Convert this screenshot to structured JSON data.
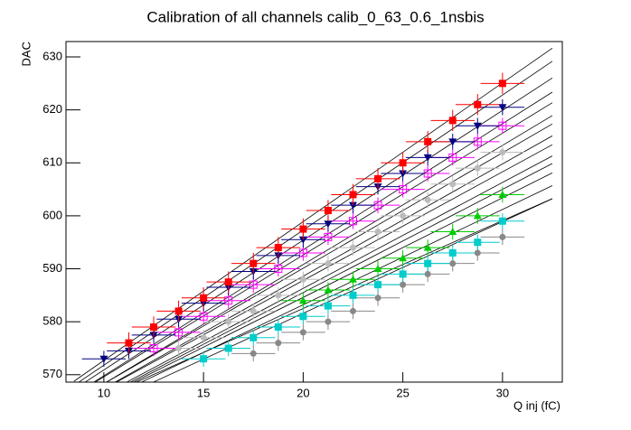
{
  "chart_data": {
    "type": "scatter",
    "title": "Calibration of all channels calib_0_63_0.6_1nsbis",
    "x_label": "Q inj (fC)",
    "y_label": "DAC",
    "xlim": [
      8.1,
      33.0
    ],
    "ylim": [
      568.6,
      632.9
    ],
    "xticks": [
      10,
      15,
      20,
      25,
      30
    ],
    "yticks": [
      570,
      580,
      590,
      600,
      610,
      620,
      630
    ],
    "fit_color": "#000000",
    "fit_range": [
      8.5,
      32.5
    ],
    "fits": [
      {
        "slope": 2.62,
        "intercept": 546.5
      },
      {
        "slope": 2.55,
        "intercept": 546.3
      },
      {
        "slope": 2.45,
        "intercept": 546.4
      },
      {
        "slope": 2.38,
        "intercept": 546.0
      },
      {
        "slope": 2.3,
        "intercept": 546.6
      },
      {
        "slope": 2.25,
        "intercept": 545.8
      },
      {
        "slope": 2.18,
        "intercept": 546.5
      },
      {
        "slope": 2.12,
        "intercept": 546.2
      },
      {
        "slope": 2.05,
        "intercept": 546.8
      },
      {
        "slope": 2.0,
        "intercept": 546.3
      },
      {
        "slope": 1.95,
        "intercept": 546.5
      },
      {
        "slope": 1.88,
        "intercept": 547.0
      },
      {
        "slope": 1.8,
        "intercept": 547.2
      },
      {
        "slope": 1.73,
        "intercept": 547.0
      },
      {
        "slope": 1.66,
        "intercept": 549.3
      }
    ],
    "series": [
      {
        "color": "#bbbbbb",
        "marker": "circle",
        "xerr": 1.1,
        "yerr": 1.5,
        "x": [
          13.75,
          15,
          16.25,
          17.5,
          18.75,
          20,
          21.25,
          22.5,
          23.75,
          25,
          26.25,
          27.5,
          28.75,
          30
        ],
        "values": [
          575,
          577,
          580,
          582,
          585,
          588,
          591,
          594,
          597,
          600,
          603,
          606,
          609,
          612
        ]
      },
      {
        "color": "#888888",
        "marker": "circle",
        "xerr": 1.1,
        "yerr": 1.5,
        "x": [
          17.5,
          18.75,
          20,
          21.25,
          22.5,
          23.75,
          25,
          26.25,
          27.5,
          28.75,
          30
        ],
        "values": [
          574,
          576,
          578,
          580,
          582,
          584.5,
          587,
          589,
          591,
          593,
          596
        ]
      },
      {
        "color": "#00cccc",
        "marker": "square",
        "xerr": 1.1,
        "yerr": 1.5,
        "x": [
          15,
          16.25,
          17.5,
          18.75,
          20,
          21.25,
          22.5,
          23.75,
          25,
          26.25,
          27.5,
          28.75,
          30
        ],
        "values": [
          573,
          575,
          577,
          579,
          581,
          583,
          585,
          587,
          589,
          591,
          593,
          595,
          599
        ]
      },
      {
        "color": "#00cc00",
        "marker": "triangle",
        "xerr": 1.1,
        "yerr": 1.5,
        "x": [
          20,
          21.25,
          22.5,
          23.75,
          25,
          26.25,
          27.5,
          28.75,
          30
        ],
        "values": [
          584,
          586,
          588,
          590,
          592,
          594,
          597,
          600,
          604
        ]
      },
      {
        "color": "#ff00ff",
        "marker": "open-square",
        "xerr": 1.1,
        "yerr": 1.5,
        "x": [
          12.5,
          13.75,
          15,
          16.25,
          17.5,
          18.75,
          20,
          21.25,
          22.5,
          23.75,
          25,
          26.25,
          27.5,
          28.75,
          30
        ],
        "values": [
          575,
          578,
          581,
          584,
          587,
          590,
          593,
          596,
          599,
          602,
          605,
          608,
          611,
          614,
          617
        ]
      },
      {
        "color": "#000080",
        "marker": "triangle-down",
        "xerr": 1.1,
        "yerr": 1.5,
        "x": [
          10,
          11.25,
          12.5,
          13.75,
          15,
          16.25,
          17.5,
          18.75,
          20,
          21.25,
          22.5,
          23.75,
          25,
          26.25,
          27.5,
          28.75,
          30
        ],
        "values": [
          573,
          574.5,
          577.5,
          580.5,
          583.5,
          586.5,
          589.5,
          592.5,
          595.5,
          598.5,
          602,
          605.5,
          608,
          611,
          614,
          617,
          620.5
        ]
      },
      {
        "color": "#ff0000",
        "marker": "square",
        "xerr": 1.1,
        "yerr": 2,
        "x": [
          11.25,
          12.5,
          13.75,
          15,
          16.25,
          17.5,
          18.75,
          20,
          21.25,
          22.5,
          23.75,
          25,
          26.25,
          27.5,
          28.75,
          30
        ],
        "values": [
          576,
          579,
          582,
          584.5,
          587.5,
          591,
          594,
          597.5,
          601,
          604,
          607,
          610,
          614,
          618,
          621,
          625
        ]
      }
    ]
  }
}
